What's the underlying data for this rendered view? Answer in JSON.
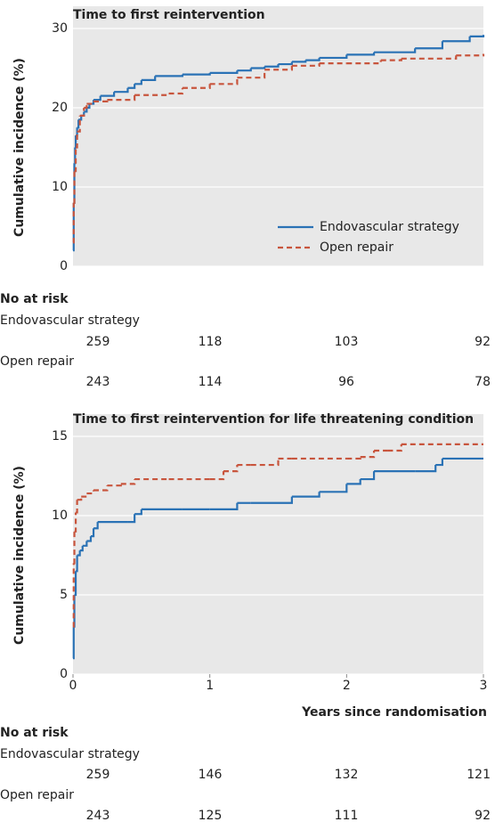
{
  "chart_data": [
    {
      "type": "line",
      "title": "Time to first reintervention",
      "y_label": "Cumulative incidence (%)",
      "xlim": [
        0,
        3
      ],
      "ylim": [
        0,
        30
      ],
      "yticks": [
        0,
        10,
        20,
        30
      ],
      "grid": true,
      "legend": "lower right",
      "series": [
        {
          "name": "Endovascular strategy",
          "color": "#2a72b5",
          "dash": "solid",
          "x": [
            0,
            0.005,
            0.01,
            0.015,
            0.02,
            0.03,
            0.04,
            0.06,
            0.08,
            0.1,
            0.12,
            0.15,
            0.2,
            0.3,
            0.4,
            0.45,
            0.5,
            0.6,
            0.8,
            1.0,
            1.2,
            1.3,
            1.4,
            1.5,
            1.6,
            1.7,
            1.8,
            2.0,
            2.2,
            2.5,
            2.7,
            2.9,
            3.0
          ],
          "values": [
            2,
            8,
            13,
            15,
            16.5,
            17.5,
            18.5,
            19,
            19.5,
            20,
            20.5,
            21,
            21.5,
            22,
            22.5,
            23,
            23.5,
            24,
            24.2,
            24.4,
            24.7,
            25,
            25.2,
            25.5,
            25.8,
            26,
            26.3,
            26.7,
            27,
            27.5,
            28.4,
            29,
            29.2
          ]
        },
        {
          "name": "Open repair",
          "color": "#c8553d",
          "dash": "dashed",
          "x": [
            0,
            0.005,
            0.01,
            0.02,
            0.03,
            0.05,
            0.08,
            0.1,
            0.15,
            0.25,
            0.45,
            0.7,
            0.8,
            1.0,
            1.2,
            1.4,
            1.6,
            1.8,
            2.0,
            2.25,
            2.4,
            2.8,
            3.0
          ],
          "values": [
            3,
            8,
            12,
            15,
            17,
            19,
            20,
            20.5,
            20.8,
            21,
            21.6,
            21.8,
            22.5,
            23,
            23.8,
            24.8,
            25.3,
            25.6,
            25.6,
            26,
            26.2,
            26.6,
            26.8
          ]
        }
      ],
      "risk_table": {
        "title": "No at risk",
        "rows": [
          {
            "name": "Endovascular strategy",
            "values": [
              259,
              118,
              103,
              92
            ]
          },
          {
            "name": "Open repair",
            "values": [
              243,
              114,
              96,
              78
            ]
          }
        ]
      }
    },
    {
      "type": "line",
      "title": "Time to first reintervention for life threatening condition",
      "y_label": "Cumulative incidence (%)",
      "x_label": "Years since randomisation",
      "xlim": [
        0,
        3
      ],
      "xticks": [
        0,
        1,
        2,
        3
      ],
      "ylim": [
        0,
        15
      ],
      "yticks": [
        0,
        5,
        10,
        15
      ],
      "grid": true,
      "series": [
        {
          "color": "#2a72b5",
          "dash": "solid",
          "x": [
            0,
            0.005,
            0.01,
            0.02,
            0.03,
            0.05,
            0.07,
            0.1,
            0.13,
            0.15,
            0.18,
            0.4,
            0.45,
            0.5,
            0.8,
            1.0,
            1.2,
            1.3,
            1.6,
            1.8,
            2.0,
            2.1,
            2.2,
            2.5,
            2.65,
            2.7,
            3.0
          ],
          "values": [
            1,
            3,
            5,
            6.5,
            7.5,
            7.8,
            8.1,
            8.4,
            8.7,
            9.2,
            9.6,
            9.6,
            10.1,
            10.4,
            10.4,
            10.4,
            10.8,
            10.8,
            11.2,
            11.5,
            12,
            12.3,
            12.8,
            12.8,
            13.2,
            13.6,
            13.6
          ]
        },
        {
          "color": "#c8553d",
          "dash": "dashed",
          "x": [
            0,
            0.005,
            0.01,
            0.02,
            0.03,
            0.06,
            0.1,
            0.15,
            0.25,
            0.35,
            0.45,
            0.7,
            1.0,
            1.1,
            1.2,
            1.3,
            1.5,
            1.6,
            2.0,
            2.1,
            2.2,
            2.3,
            2.4,
            3.0
          ],
          "values": [
            3,
            7,
            9,
            10.2,
            11,
            11.2,
            11.4,
            11.6,
            11.9,
            12,
            12.3,
            12.3,
            12.3,
            12.8,
            13.2,
            13.2,
            13.6,
            13.6,
            13.6,
            13.7,
            14.1,
            14.1,
            14.5,
            14.5
          ]
        }
      ],
      "risk_table": {
        "title": "No at risk",
        "rows": [
          {
            "name": "Endovascular strategy",
            "values": [
              259,
              146,
              132,
              121
            ]
          },
          {
            "name": "Open repair",
            "values": [
              243,
              125,
              111,
              92
            ]
          }
        ]
      }
    }
  ]
}
